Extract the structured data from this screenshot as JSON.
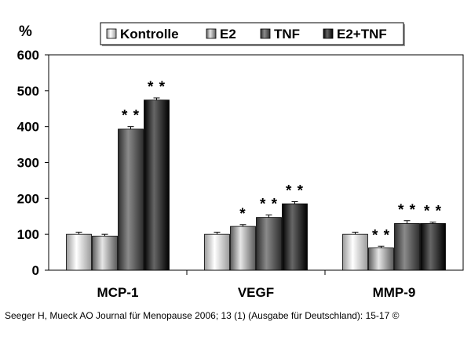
{
  "chart_data": {
    "type": "bar",
    "ylabel": "%",
    "ylim": [
      0,
      600
    ],
    "yticks": [
      0,
      100,
      200,
      300,
      400,
      500,
      600
    ],
    "grid": false,
    "legend_position": "top",
    "categories": [
      "MCP-1",
      "VEGF",
      "MMP-9"
    ],
    "series": [
      {
        "name": "Kontrolle",
        "values": [
          100,
          100,
          100
        ],
        "errors": [
          6,
          6,
          6
        ],
        "sig": [
          "",
          "",
          ""
        ],
        "color_dark": "#9a9a9a",
        "color_light": "#ffffff"
      },
      {
        "name": "E2",
        "values": [
          95,
          122,
          62
        ],
        "errors": [
          5,
          5,
          5
        ],
        "sig": [
          "",
          "*",
          "**"
        ],
        "color_dark": "#5a5a5a",
        "color_light": "#e6e6e6"
      },
      {
        "name": "TNF",
        "values": [
          393,
          147,
          130
        ],
        "errors": [
          7,
          7,
          8
        ],
        "sig": [
          "**",
          "**",
          "**"
        ],
        "color_dark": "#2e2e2e",
        "color_light": "#8a8a8a"
      },
      {
        "name": "E2+TNF",
        "values": [
          474,
          185,
          130
        ],
        "errors": [
          6,
          6,
          4
        ],
        "sig": [
          "**",
          "**",
          "**"
        ],
        "color_dark": "#000000",
        "color_light": "#666666"
      }
    ]
  },
  "citation": "Seeger H, Mueck AO Journal für Menopause 2006; 13 (1) (Ausgabe für Deutschland): 15-17 ©"
}
